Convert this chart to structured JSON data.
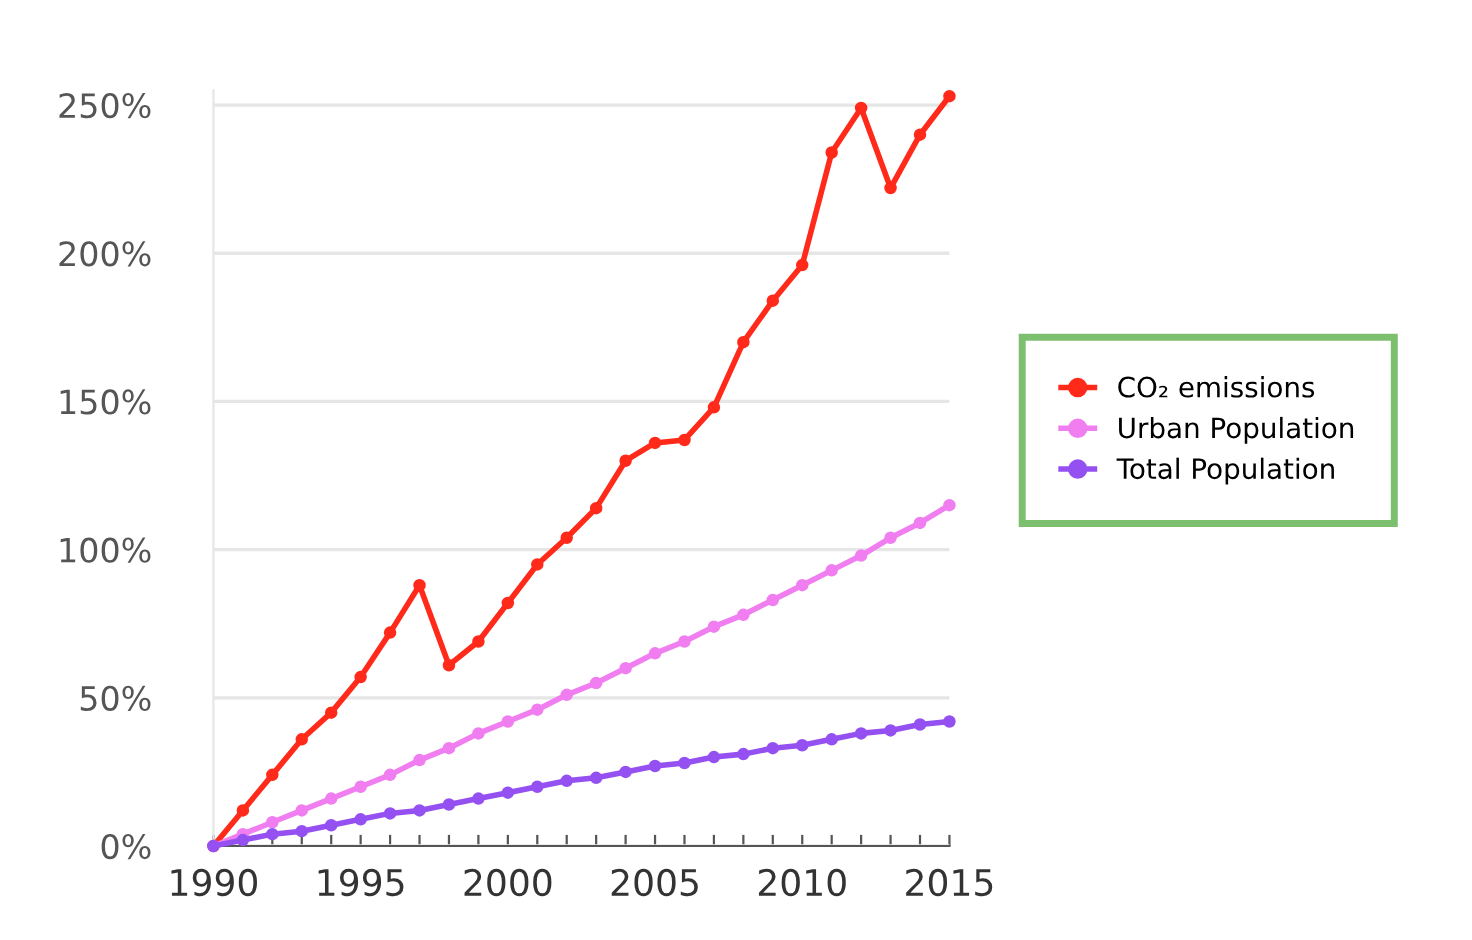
{
  "chart_data": {
    "type": "line",
    "x": [
      1990,
      1991,
      1992,
      1993,
      1994,
      1995,
      1996,
      1997,
      1998,
      1999,
      2000,
      2001,
      2002,
      2003,
      2004,
      2005,
      2006,
      2007,
      2008,
      2009,
      2010,
      2011,
      2012,
      2013,
      2014,
      2015
    ],
    "series": [
      {
        "name": "CO₂ emissions",
        "color": "#ff2a1a",
        "values": [
          0,
          12,
          24,
          36,
          45,
          57,
          72,
          88,
          61,
          69,
          82,
          95,
          104,
          114,
          130,
          136,
          137,
          148,
          170,
          184,
          196,
          234,
          249,
          222,
          240,
          253
        ]
      },
      {
        "name": "Urban Population",
        "color": "#f07ef0",
        "values": [
          0,
          4,
          8,
          12,
          16,
          20,
          24,
          29,
          33,
          38,
          42,
          46,
          51,
          55,
          60,
          65,
          69,
          74,
          78,
          83,
          88,
          93,
          98,
          104,
          109,
          115
        ]
      },
      {
        "name": "Total Population",
        "color": "#9450f0",
        "values": [
          0,
          2,
          4,
          5,
          7,
          9,
          11,
          12,
          14,
          16,
          18,
          20,
          22,
          23,
          25,
          27,
          28,
          30,
          31,
          33,
          34,
          36,
          38,
          39,
          41,
          42
        ]
      }
    ],
    "xlim": [
      1990,
      2015
    ],
    "xticks": [
      1990,
      {
        "value": 1991,
        "label": null
      },
      {
        "value": 1992,
        "label": null
      },
      {
        "value": 1993,
        "label": null
      },
      {
        "value": 1994,
        "label": null
      },
      1995,
      {
        "value": 1996,
        "label": null
      },
      {
        "value": 1997,
        "label": null
      },
      {
        "value": 1998,
        "label": null
      },
      {
        "value": 1999,
        "label": null
      },
      2000,
      {
        "value": 2001,
        "label": null
      },
      {
        "value": 2002,
        "label": null
      },
      {
        "value": 2003,
        "label": null
      },
      {
        "value": 2004,
        "label": null
      },
      2005,
      {
        "value": 2006,
        "label": null
      },
      {
        "value": 2007,
        "label": null
      },
      {
        "value": 2008,
        "label": null
      },
      {
        "value": 2009,
        "label": null
      },
      2010,
      {
        "value": 2011,
        "label": null
      },
      {
        "value": 2012,
        "label": null
      },
      {
        "value": 2013,
        "label": null
      },
      {
        "value": 2014,
        "label": null
      },
      2015
    ],
    "ylim": [
      0,
      255
    ],
    "yticks": [
      {
        "value": 0,
        "label": "0%"
      },
      {
        "value": 50,
        "label": "50%"
      },
      {
        "value": 100,
        "label": "100%"
      },
      {
        "value": 150,
        "label": "150%"
      },
      {
        "value": 200,
        "label": "200%"
      },
      {
        "value": 250,
        "label": "250%"
      }
    ],
    "grid": "y",
    "legend": "right",
    "marker": "circle",
    "line_style": "solid"
  }
}
